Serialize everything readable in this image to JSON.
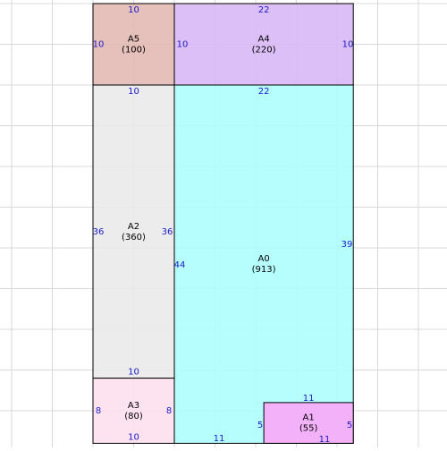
{
  "colors": {
    "grid": "#d8d8d8",
    "border": "#000000",
    "dim_text": "#1a1acc",
    "label_text": "#000000"
  },
  "grid": {
    "cols": 11,
    "rows": 11
  },
  "rects": [
    {
      "id": "A5",
      "label": "A5",
      "area": "(100)",
      "color": "#e3b9b3",
      "col0": 0,
      "row0": 0,
      "col1": 2,
      "row1": 2,
      "dims": {
        "top": "10",
        "left": "10",
        "bottom": "",
        "right": ""
      }
    },
    {
      "id": "A4",
      "label": "A4",
      "area": "(220)",
      "color": "#d8b8f5",
      "col0": 2,
      "row0": 0,
      "col1": 6.4,
      "row1": 2,
      "dims": {
        "top": "22",
        "left": "10",
        "bottom": "",
        "right": "10"
      }
    },
    {
      "id": "A2",
      "label": "A2",
      "area": "(360)",
      "color": "#eaeaea",
      "col0": 0,
      "row0": 2,
      "col1": 2,
      "row1": 9.2,
      "dims": {
        "top": "10",
        "left": "36",
        "bottom": "10",
        "right": "36"
      }
    },
    {
      "id": "A0",
      "label": "A0",
      "area": "(913)",
      "color": "#aefefe",
      "col0": 2,
      "row0": 2,
      "col1": 6.4,
      "row1": 10.8,
      "dims": {
        "top": "22",
        "left": "44",
        "bottom": "11",
        "right": "39"
      }
    },
    {
      "id": "A3",
      "label": "A3",
      "area": "(80)",
      "color": "#fde0ee",
      "col0": 0,
      "row0": 9.2,
      "col1": 2,
      "row1": 10.8,
      "dims": {
        "top": "",
        "left": "8",
        "bottom": "10",
        "right": "8"
      }
    },
    {
      "id": "A1",
      "label": "A1",
      "area": "(55)",
      "color": "#f9a8fa",
      "col0": 4.2,
      "row0": 9.8,
      "col1": 6.4,
      "row1": 10.8,
      "dims": {
        "top": "11",
        "left": "5",
        "bottom": "11",
        "right": "5"
      }
    }
  ]
}
